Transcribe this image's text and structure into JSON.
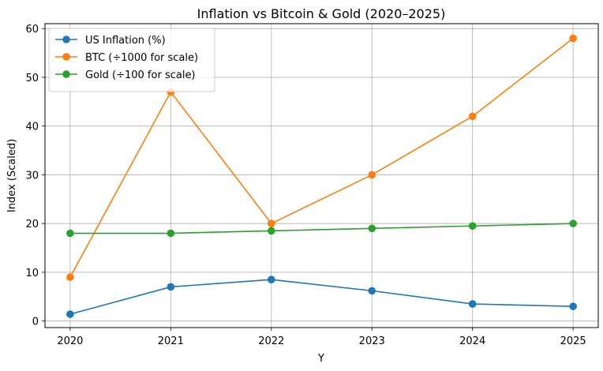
{
  "chart_data": {
    "type": "line",
    "title": "Inflation vs Bitcoin & Gold (2020–2025)",
    "xlabel": "Y",
    "ylabel": "Index (Scaled)",
    "x": [
      2020,
      2021,
      2022,
      2023,
      2024,
      2025
    ],
    "x_tick_labels": [
      "2020",
      "2021",
      "2022",
      "2023",
      "2024",
      "2025"
    ],
    "y_ticks": [
      0,
      10,
      20,
      30,
      40,
      50,
      60
    ],
    "y_tick_labels": [
      "0",
      "10",
      "20",
      "30",
      "40",
      "50",
      "60"
    ],
    "xlim": [
      2019.75,
      2025.25
    ],
    "ylim": [
      -1.35,
      61.0
    ],
    "grid": true,
    "legend_position": "top-left",
    "series": [
      {
        "name": "US Inflation (%)",
        "color": "#1f77b4",
        "values": [
          1.4,
          7.0,
          8.5,
          6.2,
          3.5,
          3.0
        ]
      },
      {
        "name": "BTC (÷1000 for scale)",
        "color": "#ff7f0e",
        "values": [
          9,
          47,
          20,
          30,
          42,
          58
        ]
      },
      {
        "name": "Gold (÷100 for scale)",
        "color": "#2ca02c",
        "values": [
          18,
          18,
          18.5,
          19,
          19.5,
          20
        ]
      }
    ]
  }
}
